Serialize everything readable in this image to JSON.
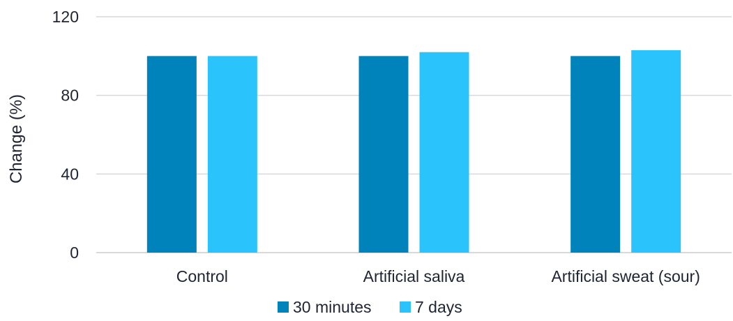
{
  "chart_data": {
    "type": "bar",
    "title": "",
    "xlabel": "",
    "ylabel": "Change (%)",
    "categories": [
      "Control",
      "Artificial saliva",
      "Artificial sweat (sour)"
    ],
    "series": [
      {
        "name": "30 minutes",
        "color": "#0083bb",
        "values": [
          100,
          100,
          100
        ]
      },
      {
        "name": "7 days",
        "color": "#2bc3fc",
        "values": [
          100,
          102,
          103
        ]
      }
    ],
    "ylim": [
      0,
      120
    ],
    "yticks": [
      0,
      40,
      80,
      120
    ],
    "grid": true,
    "legend_position": "bottom-center",
    "colors": {
      "gridline": "#d9d9d9",
      "text": "#1f2433"
    }
  }
}
